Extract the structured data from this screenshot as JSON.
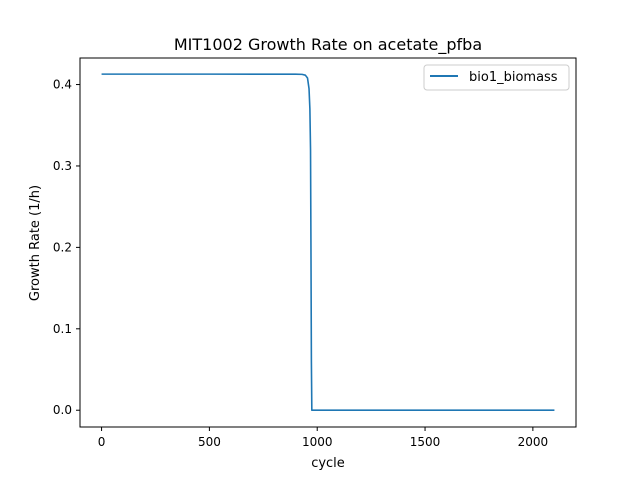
{
  "chart_data": {
    "type": "line",
    "title": "MIT1002 Growth Rate on acetate_pfba",
    "xlabel": "cycle",
    "ylabel": "Growth Rate (1/h)",
    "xlim": [
      -100,
      2200
    ],
    "ylim": [
      -0.0206,
      0.4326
    ],
    "xticks": [
      0,
      500,
      1000,
      1500,
      2000
    ],
    "yticks": [
      0.0,
      0.1,
      0.2,
      0.3,
      0.4
    ],
    "xtick_labels": [
      "0",
      "500",
      "1000",
      "1500",
      "2000"
    ],
    "ytick_labels": [
      "0.0",
      "0.1",
      "0.2",
      "0.3",
      "0.4"
    ],
    "grid": false,
    "legend": "top-right",
    "series": [
      {
        "name": "bio1_biomass",
        "color": "#1f77b4",
        "x": [
          0,
          500,
          900,
          930,
          945,
          955,
          962,
          966,
          969,
          971,
          973,
          975,
          2100
        ],
        "y": [
          0.4128,
          0.4128,
          0.4127,
          0.4125,
          0.4115,
          0.408,
          0.395,
          0.37,
          0.32,
          0.2,
          0.06,
          0.0,
          0.0
        ]
      }
    ]
  }
}
